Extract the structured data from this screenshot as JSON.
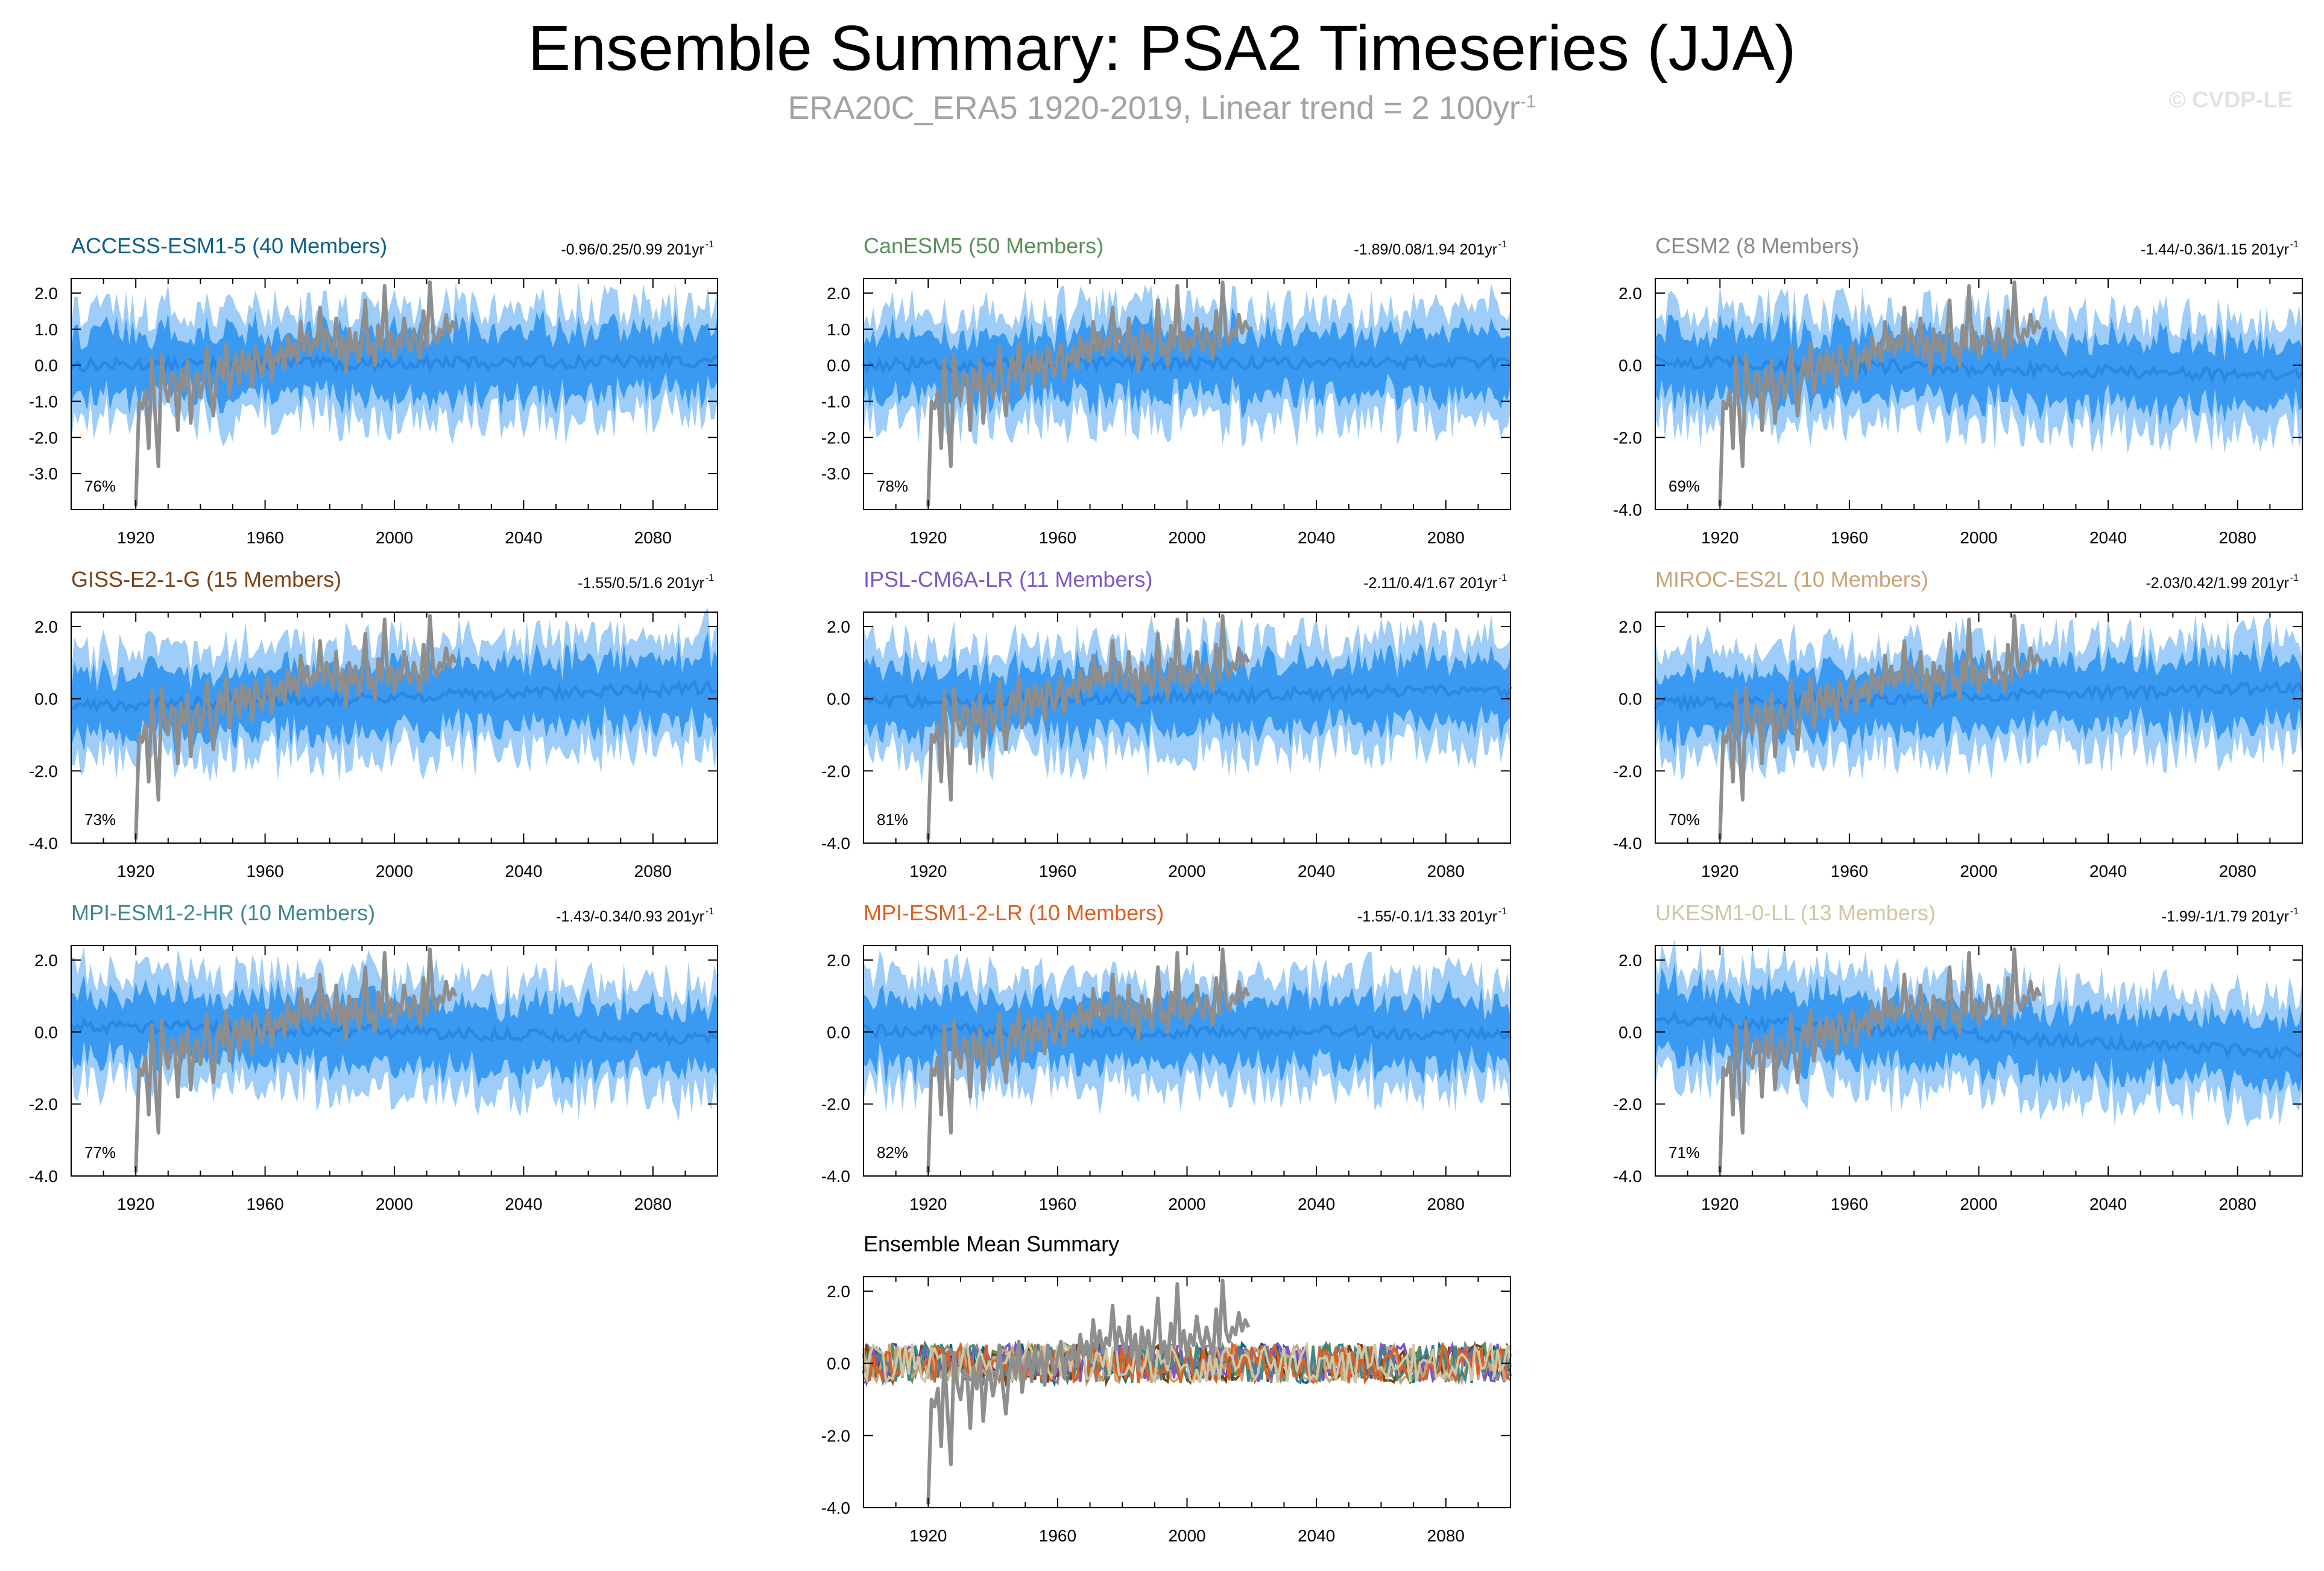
{
  "title": "Ensemble Summary: PSA2 Timeseries (JJA)",
  "subtitle": "ERA20C_ERA5 1920-2019, Linear trend = 2 100yr",
  "subtitle_superscript": "-1",
  "credit": "© CVDP-LE",
  "colors": {
    "observed": "#8e8e8e",
    "band_outer": "#9dcdf8",
    "band_inner": "#3a9af2",
    "ensemble_mean": "#2a87e4",
    "axis": "#000000"
  },
  "chart_data": [
    {
      "type": "line",
      "title": "ACCESS-ESM1-5 (40 Members)",
      "title_color": "#0f5f8a",
      "stats": "-0.96/0.25/0.99 201yr",
      "stats_superscript": "-1",
      "percent": "76%",
      "x_ticks": [
        "1920",
        "1960",
        "2000",
        "2040",
        "2080"
      ],
      "y_ticks": [
        "2.0",
        "1.0",
        "0.0",
        "-1.0",
        "-2.0",
        "-3.0"
      ],
      "ylim": [
        -4.0,
        2.4
      ],
      "xlim": [
        1900,
        2100
      ],
      "mean_trend": [
        0.0,
        0.12
      ]
    },
    {
      "type": "line",
      "title": "CanESM5 (50 Members)",
      "title_color": "#5b8f5a",
      "stats": "-1.89/0.08/1.94 201yr",
      "stats_superscript": "-1",
      "percent": "78%",
      "x_ticks": [
        "1920",
        "1960",
        "2000",
        "2040",
        "2080"
      ],
      "y_ticks": [
        "2.0",
        "1.0",
        "0.0",
        "-1.0",
        "-2.0",
        "-3.0"
      ],
      "ylim": [
        -4.0,
        2.4
      ],
      "xlim": [
        1900,
        2100
      ],
      "mean_trend": [
        0.0,
        0.1
      ]
    },
    {
      "type": "line",
      "title": "CESM2 (8 Members)",
      "title_color": "#8a8a8a",
      "stats": "-1.44/-0.36/1.15 201yr",
      "stats_superscript": "-1",
      "percent": "69%",
      "x_ticks": [
        "1920",
        "1960",
        "2000",
        "2040",
        "2080"
      ],
      "y_ticks": [
        "2.0",
        "0.0",
        "-2.0",
        "-4.0"
      ],
      "ylim": [
        -4.0,
        2.4
      ],
      "xlim": [
        1900,
        2100
      ],
      "mean_trend": [
        0.1,
        -0.3
      ]
    },
    {
      "type": "line",
      "title": "GISS-E2-1-G (15 Members)",
      "title_color": "#7a4218",
      "stats": "-1.55/0.5/1.6 201yr",
      "stats_superscript": "-1",
      "percent": "73%",
      "x_ticks": [
        "1920",
        "1960",
        "2000",
        "2040",
        "2080"
      ],
      "y_ticks": [
        "2.0",
        "0.0",
        "-2.0",
        "-4.0"
      ],
      "ylim": [
        -4.0,
        2.4
      ],
      "xlim": [
        1900,
        2100
      ],
      "mean_trend": [
        -0.2,
        0.3
      ]
    },
    {
      "type": "line",
      "title": "IPSL-CM6A-LR (11 Members)",
      "title_color": "#7b57c8",
      "stats": "-2.11/0.4/1.67 201yr",
      "stats_superscript": "-1",
      "percent": "81%",
      "x_ticks": [
        "1920",
        "1960",
        "2000",
        "2040",
        "2080"
      ],
      "y_ticks": [
        "2.0",
        "0.0",
        "-2.0",
        "-4.0"
      ],
      "ylim": [
        -4.0,
        2.4
      ],
      "xlim": [
        1900,
        2100
      ],
      "mean_trend": [
        -0.1,
        0.25
      ]
    },
    {
      "type": "line",
      "title": "MIROC-ES2L (10 Members)",
      "title_color": "#c9a377",
      "stats": "-2.03/0.42/1.99 201yr",
      "stats_superscript": "-1",
      "percent": "70%",
      "x_ticks": [
        "1920",
        "1960",
        "2000",
        "2040",
        "2080"
      ],
      "y_ticks": [
        "2.0",
        "0.0",
        "-2.0",
        "-4.0"
      ],
      "ylim": [
        -4.0,
        2.4
      ],
      "xlim": [
        1900,
        2100
      ],
      "mean_trend": [
        -0.15,
        0.3
      ]
    },
    {
      "type": "line",
      "title": "MPI-ESM1-2-HR (10 Members)",
      "title_color": "#3f878c",
      "stats": "-1.43/-0.34/0.93 201yr",
      "stats_superscript": "-1",
      "percent": "77%",
      "x_ticks": [
        "1920",
        "1960",
        "2000",
        "2040",
        "2080"
      ],
      "y_ticks": [
        "2.0",
        "0.0",
        "-2.0",
        "-4.0"
      ],
      "ylim": [
        -4.0,
        2.4
      ],
      "xlim": [
        1900,
        2100
      ],
      "mean_trend": [
        0.2,
        -0.2
      ]
    },
    {
      "type": "line",
      "title": "MPI-ESM1-2-LR (10 Members)",
      "title_color": "#dd5f21",
      "stats": "-1.55/-0.1/1.33 201yr",
      "stats_superscript": "-1",
      "percent": "82%",
      "x_ticks": [
        "1920",
        "1960",
        "2000",
        "2040",
        "2080"
      ],
      "y_ticks": [
        "2.0",
        "0.0",
        "-2.0",
        "-4.0"
      ],
      "ylim": [
        -4.0,
        2.4
      ],
      "xlim": [
        1900,
        2100
      ],
      "mean_trend": [
        0.05,
        -0.05
      ]
    },
    {
      "type": "line",
      "title": "UKESM1-0-LL (13 Members)",
      "title_color": "#cfc7a3",
      "stats": "-1.99/-1/1.79 201yr",
      "stats_superscript": "-1",
      "percent": "71%",
      "x_ticks": [
        "1920",
        "1960",
        "2000",
        "2040",
        "2080"
      ],
      "y_ticks": [
        "2.0",
        "0.0",
        "-2.0",
        "-4.0"
      ],
      "ylim": [
        -4.0,
        2.4
      ],
      "xlim": [
        1900,
        2100
      ],
      "mean_trend": [
        0.4,
        -0.6
      ]
    },
    {
      "type": "line",
      "title": "Ensemble Mean Summary",
      "title_color": "#000000",
      "stats": "",
      "stats_superscript": "",
      "percent": "",
      "summary": true,
      "x_ticks": [
        "1920",
        "1960",
        "2000",
        "2040",
        "2080"
      ],
      "y_ticks": [
        "2.0",
        "0.0",
        "-2.0",
        "-4.0"
      ],
      "ylim": [
        -4.0,
        2.4
      ],
      "xlim": [
        1900,
        2100
      ],
      "mean_trend": [
        0.0,
        0.0
      ],
      "series_colors": [
        "#0f5f8a",
        "#5b8f5a",
        "#8a8a8a",
        "#7a4218",
        "#7b57c8",
        "#c9a377",
        "#3f878c",
        "#dd5f21",
        "#cfc7a3"
      ]
    }
  ],
  "observed": {
    "years": [
      1920,
      1921,
      1922,
      1923,
      1924,
      1925,
      1926,
      1927,
      1928,
      1929,
      1930,
      1931,
      1932,
      1933,
      1934,
      1935,
      1936,
      1937,
      1938,
      1939,
      1940,
      1941,
      1942,
      1943,
      1944,
      1945,
      1946,
      1947,
      1948,
      1949,
      1950,
      1951,
      1952,
      1953,
      1954,
      1955,
      1956,
      1957,
      1958,
      1959,
      1960,
      1961,
      1962,
      1963,
      1964,
      1965,
      1966,
      1967,
      1968,
      1969,
      1970,
      1971,
      1972,
      1973,
      1974,
      1975,
      1976,
      1977,
      1978,
      1979,
      1980,
      1981,
      1982,
      1983,
      1984,
      1985,
      1986,
      1987,
      1988,
      1989,
      1990,
      1991,
      1992,
      1993,
      1994,
      1995,
      1996,
      1997,
      1998,
      1999,
      2000,
      2001,
      2002,
      2003,
      2004,
      2005,
      2006,
      2007,
      2008,
      2009,
      2010,
      2011,
      2012,
      2013,
      2014,
      2015,
      2016,
      2017,
      2018,
      2019
    ],
    "values": [
      -3.9,
      -1.0,
      -1.2,
      -0.7,
      -2.3,
      0.2,
      -1.4,
      -2.8,
      0.3,
      -0.6,
      -1.0,
      -0.2,
      -0.3,
      -1.8,
      -0.1,
      -0.7,
      0.1,
      -1.6,
      -0.5,
      -0.2,
      -0.9,
      -0.4,
      0.5,
      -0.6,
      -1.4,
      -0.3,
      0.2,
      -0.4,
      0.6,
      -0.8,
      -0.1,
      0.3,
      -0.5,
      0.4,
      -0.2,
      0.3,
      -0.6,
      0.5,
      0.1,
      -0.3,
      0.2,
      0.6,
      -0.4,
      0.3,
      0.1,
      0.5,
      -0.1,
      0.8,
      0.2,
      0.6,
      0.1,
      1.2,
      0.4,
      0.9,
      0.3,
      0.7,
      0.5,
      1.6,
      0.4,
      1.0,
      0.6,
      0.3,
      1.3,
      0.2,
      0.8,
      -0.2,
      1.0,
      0.4,
      0.9,
      0.1,
      0.7,
      1.8,
      0.3,
      0.6,
      0.0,
      1.1,
      0.5,
      2.2,
      0.4,
      0.9,
      0.2,
      0.8,
      0.5,
      1.3,
      0.7,
      0.4,
      1.0,
      0.6,
      0.2,
      1.5,
      0.5,
      2.3,
      0.9,
      0.6,
      1.0,
      0.8,
      1.4,
      0.9,
      1.2,
      1.0
    ]
  }
}
